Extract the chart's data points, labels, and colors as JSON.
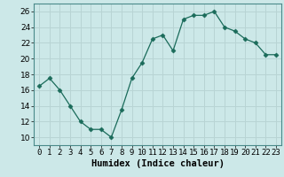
{
  "x": [
    0,
    1,
    2,
    3,
    4,
    5,
    6,
    7,
    8,
    9,
    10,
    11,
    12,
    13,
    14,
    15,
    16,
    17,
    18,
    19,
    20,
    21,
    22,
    23
  ],
  "y": [
    16.5,
    17.5,
    16.0,
    14.0,
    12.0,
    11.0,
    11.0,
    10.0,
    13.5,
    17.5,
    19.5,
    22.5,
    23.0,
    21.0,
    25.0,
    25.5,
    25.5,
    26.0,
    24.0,
    23.5,
    22.5,
    22.0,
    20.5,
    20.5
  ],
  "xlabel": "Humidex (Indice chaleur)",
  "ylabel": "",
  "xlim": [
    -0.5,
    23.5
  ],
  "ylim": [
    9,
    27
  ],
  "yticks": [
    10,
    12,
    14,
    16,
    18,
    20,
    22,
    24,
    26
  ],
  "xticks": [
    0,
    1,
    2,
    3,
    4,
    5,
    6,
    7,
    8,
    9,
    10,
    11,
    12,
    13,
    14,
    15,
    16,
    17,
    18,
    19,
    20,
    21,
    22,
    23
  ],
  "line_color": "#1a6b5a",
  "marker": "D",
  "marker_size": 2.5,
  "bg_color": "#cce8e8",
  "grid_color": "#b8d4d4",
  "tick_label_fontsize": 6.5,
  "xlabel_fontsize": 7.5
}
